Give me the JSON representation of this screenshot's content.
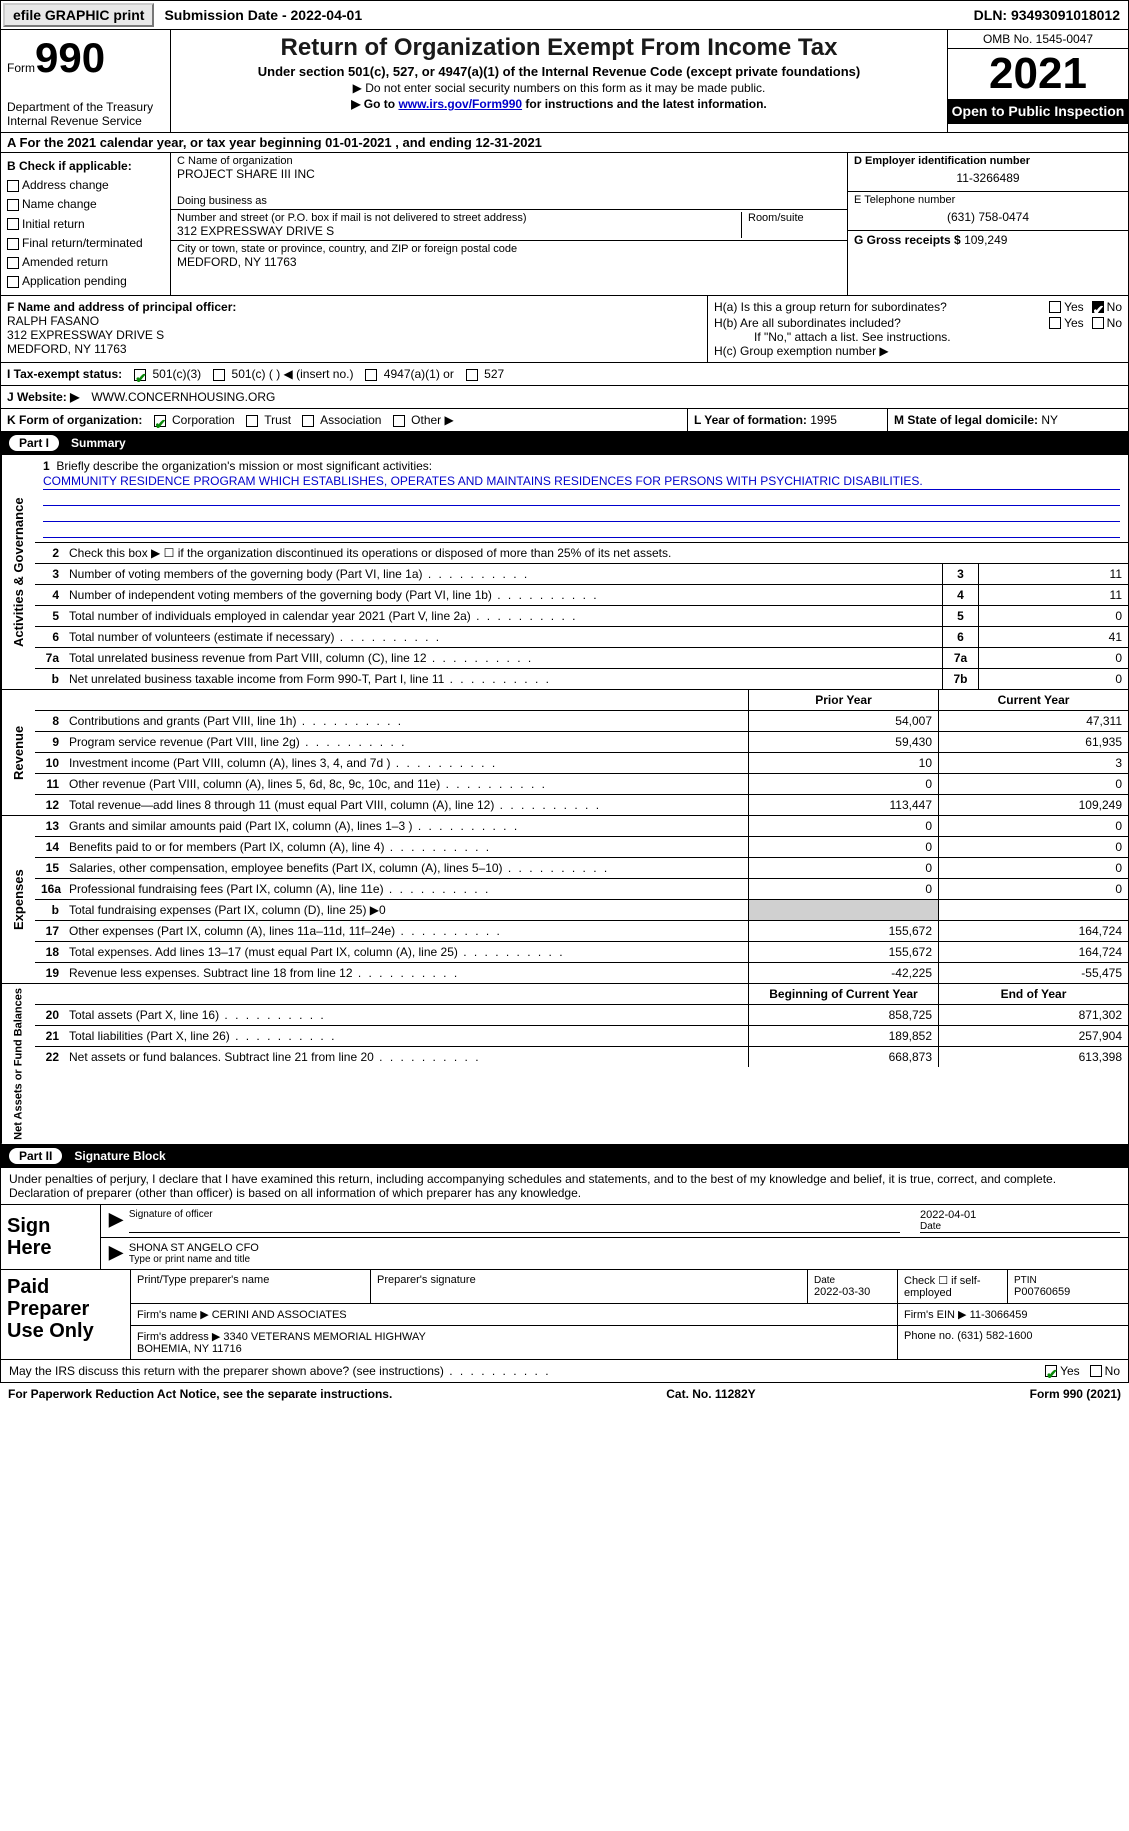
{
  "topbar": {
    "efile": "efile GRAPHIC print",
    "subdate_lbl": "Submission Date - ",
    "subdate": "2022-04-01",
    "dln_lbl": "DLN: ",
    "dln": "93493091018012"
  },
  "header": {
    "form_word": "Form",
    "form_no": "990",
    "dept": "Department of the Treasury\nInternal Revenue Service",
    "title": "Return of Organization Exempt From Income Tax",
    "sub1": "Under section 501(c), 527, or 4947(a)(1) of the Internal Revenue Code (except private foundations)",
    "sub2": "▶ Do not enter social security numbers on this form as it may be made public.",
    "sub3_pre": "▶ Go to ",
    "sub3_link": "www.irs.gov/Form990",
    "sub3_post": " for instructions and the latest information.",
    "omb": "OMB No. 1545-0047",
    "year": "2021",
    "inspection": "Open to Public Inspection"
  },
  "row_a": "A For the 2021 calendar year, or tax year beginning 01-01-2021   , and ending 12-31-2021",
  "checkboxes": {
    "lbl": "B Check if applicable:",
    "items": [
      "Address change",
      "Name change",
      "Initial return",
      "Final return/terminated",
      "Amended return",
      "Application pending"
    ]
  },
  "org": {
    "c_lbl": "C Name of organization",
    "name": "PROJECT SHARE III INC",
    "dba_lbl": "Doing business as",
    "dba": "",
    "addr_lbl": "Number and street (or P.O. box if mail is not delivered to street address)",
    "room_lbl": "Room/suite",
    "addr": "312 EXPRESSWAY DRIVE S",
    "city_lbl": "City or town, state or province, country, and ZIP or foreign postal code",
    "city": "MEDFORD, NY  11763"
  },
  "right": {
    "d_lbl": "D Employer identification number",
    "ein": "11-3266489",
    "e_lbl": "E Telephone number",
    "phone": "(631) 758-0474",
    "g_lbl": "G Gross receipts $ ",
    "gross": "109,249"
  },
  "fh": {
    "f_lbl": "F  Name and address of principal officer:",
    "f_name": "RALPH FASANO",
    "f_addr": "312 EXPRESSWAY DRIVE S\nMEDFORD, NY  11763",
    "ha": "H(a)  Is this a group return for subordinates?",
    "hb": "H(b)  Are all subordinates included?",
    "hb_note": "If \"No,\" attach a list. See instructions.",
    "hc": "H(c)  Group exemption number ▶"
  },
  "tax_status": {
    "i_lbl": "I   Tax-exempt status:",
    "opt1": "501(c)(3)",
    "opt2": "501(c) (  ) ◀ (insert no.)",
    "opt3": "4947(a)(1) or",
    "opt4": "527"
  },
  "website": {
    "lbl": "J   Website: ▶  ",
    "val": "WWW.CONCERNHOUSING.ORG"
  },
  "k_row": {
    "k_lbl": "K Form of organization:",
    "opts": [
      "Corporation",
      "Trust",
      "Association",
      "Other ▶"
    ],
    "l_lbl": "L Year of formation: ",
    "l_val": "1995",
    "m_lbl": "M State of legal domicile: ",
    "m_val": "NY"
  },
  "part1": {
    "no": "Part I",
    "title": "Summary"
  },
  "mission": {
    "lbl": "Briefly describe the organization's mission or most significant activities:",
    "text": "COMMUNITY RESIDENCE PROGRAM WHICH ESTABLISHES, OPERATES AND MAINTAINS RESIDENCES FOR PERSONS WITH PSYCHIATRIC DISABILITIES."
  },
  "line2": "Check this box ▶ ☐  if the organization discontinued its operations or disposed of more than 25% of its net assets.",
  "gov_rows": [
    {
      "n": "3",
      "d": "Number of voting members of the governing body (Part VI, line 1a)",
      "bn": "3",
      "v": "11"
    },
    {
      "n": "4",
      "d": "Number of independent voting members of the governing body (Part VI, line 1b)",
      "bn": "4",
      "v": "11"
    },
    {
      "n": "5",
      "d": "Total number of individuals employed in calendar year 2021 (Part V, line 2a)",
      "bn": "5",
      "v": "0"
    },
    {
      "n": "6",
      "d": "Total number of volunteers (estimate if necessary)",
      "bn": "6",
      "v": "41"
    },
    {
      "n": "7a",
      "d": "Total unrelated business revenue from Part VIII, column (C), line 12",
      "bn": "7a",
      "v": "0"
    },
    {
      "n": "b",
      "d": "Net unrelated business taxable income from Form 990-T, Part I, line 11",
      "bn": "7b",
      "v": "0"
    }
  ],
  "col_hdrs": {
    "py": "Prior Year",
    "cy": "Current Year"
  },
  "rev_rows": [
    {
      "n": "8",
      "d": "Contributions and grants (Part VIII, line 1h)",
      "py": "54,007",
      "cy": "47,311"
    },
    {
      "n": "9",
      "d": "Program service revenue (Part VIII, line 2g)",
      "py": "59,430",
      "cy": "61,935"
    },
    {
      "n": "10",
      "d": "Investment income (Part VIII, column (A), lines 3, 4, and 7d )",
      "py": "10",
      "cy": "3"
    },
    {
      "n": "11",
      "d": "Other revenue (Part VIII, column (A), lines 5, 6d, 8c, 9c, 10c, and 11e)",
      "py": "0",
      "cy": "0"
    },
    {
      "n": "12",
      "d": "Total revenue—add lines 8 through 11 (must equal Part VIII, column (A), line 12)",
      "py": "113,447",
      "cy": "109,249"
    }
  ],
  "exp_rows": [
    {
      "n": "13",
      "d": "Grants and similar amounts paid (Part IX, column (A), lines 1–3 )",
      "py": "0",
      "cy": "0"
    },
    {
      "n": "14",
      "d": "Benefits paid to or for members (Part IX, column (A), line 4)",
      "py": "0",
      "cy": "0"
    },
    {
      "n": "15",
      "d": "Salaries, other compensation, employee benefits (Part IX, column (A), lines 5–10)",
      "py": "0",
      "cy": "0"
    },
    {
      "n": "16a",
      "d": "Professional fundraising fees (Part IX, column (A), line 11e)",
      "py": "0",
      "cy": "0"
    },
    {
      "n": "b",
      "d": "Total fundraising expenses (Part IX, column (D), line 25) ▶0",
      "py": "",
      "cy": "",
      "shaded": true
    },
    {
      "n": "17",
      "d": "Other expenses (Part IX, column (A), lines 11a–11d, 11f–24e)",
      "py": "155,672",
      "cy": "164,724"
    },
    {
      "n": "18",
      "d": "Total expenses. Add lines 13–17 (must equal Part IX, column (A), line 25)",
      "py": "155,672",
      "cy": "164,724"
    },
    {
      "n": "19",
      "d": "Revenue less expenses. Subtract line 18 from line 12",
      "py": "-42,225",
      "cy": "-55,475"
    }
  ],
  "na_hdrs": {
    "py": "Beginning of Current Year",
    "cy": "End of Year"
  },
  "na_rows": [
    {
      "n": "20",
      "d": "Total assets (Part X, line 16)",
      "py": "858,725",
      "cy": "871,302"
    },
    {
      "n": "21",
      "d": "Total liabilities (Part X, line 26)",
      "py": "189,852",
      "cy": "257,904"
    },
    {
      "n": "22",
      "d": "Net assets or fund balances. Subtract line 21 from line 20",
      "py": "668,873",
      "cy": "613,398"
    }
  ],
  "part2": {
    "no": "Part II",
    "title": "Signature Block"
  },
  "sig": {
    "decl": "Under penalties of perjury, I declare that I have examined this return, including accompanying schedules and statements, and to the best of my knowledge and belief, it is true, correct, and complete. Declaration of preparer (other than officer) is based on all information of which preparer has any knowledge.",
    "sign_here": "Sign Here",
    "sig_officer_lbl": "Signature of officer",
    "date_lbl": "Date",
    "sig_date": "2022-04-01",
    "name_lbl": "Type or print name and title",
    "name": "SHONA ST ANGELO  CFO"
  },
  "prep": {
    "title": "Paid Preparer Use Only",
    "r1": {
      "c1": "Print/Type preparer's name",
      "c2": "Preparer's signature",
      "c3_lbl": "Date",
      "c3": "2022-03-30",
      "c4": "Check ☐ if self-employed",
      "c5_lbl": "PTIN",
      "c5": "P00760659"
    },
    "r2": {
      "lbl": "Firm's name    ▶ ",
      "val": "CERINI AND ASSOCIATES",
      "ein_lbl": "Firm's EIN ▶ ",
      "ein": "11-3066459"
    },
    "r3": {
      "lbl": "Firm's address ▶ ",
      "val": "3340 VETERANS MEMORIAL HIGHWAY\nBOHEMIA, NY  11716",
      "ph_lbl": "Phone no. ",
      "ph": "(631) 582-1600"
    }
  },
  "footer": {
    "discuss": "May the IRS discuss this return with the preparer shown above? (see instructions)",
    "yes": "Yes",
    "no": "No",
    "pra": "For Paperwork Reduction Act Notice, see the separate instructions.",
    "cat": "Cat. No. 11282Y",
    "form": "Form 990 (2021)"
  },
  "vlabels": {
    "gov": "Activities & Governance",
    "rev": "Revenue",
    "exp": "Expenses",
    "na": "Net Assets or Fund Balances"
  }
}
